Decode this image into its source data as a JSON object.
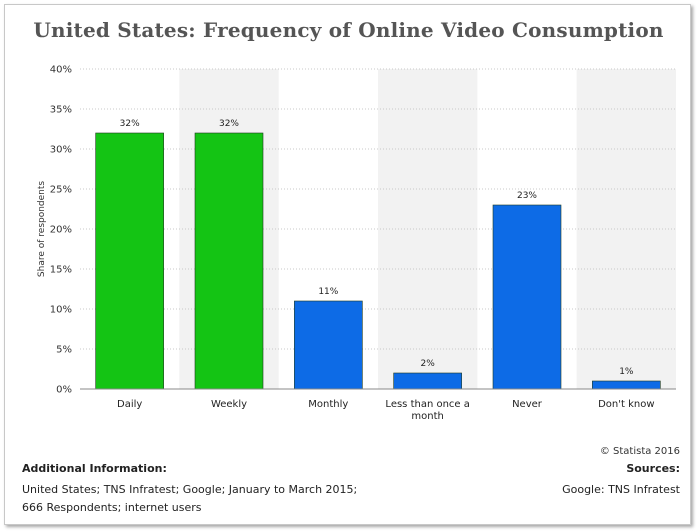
{
  "colors": {
    "green": "#14c414",
    "blue": "#0d6be6",
    "grid": "#c8c8c8",
    "band": "#f2f2f2"
  },
  "chart_data": {
    "type": "bar",
    "title": "United States: Frequency of Online Video Consumption",
    "xlabel": "",
    "ylabel": "Share of respondents",
    "ylim": [
      0,
      40
    ],
    "yticks": [
      "0%",
      "5%",
      "10%",
      "15%",
      "20%",
      "25%",
      "30%",
      "35%",
      "40%"
    ],
    "grid": true,
    "categories": [
      "Daily",
      "Weekly",
      "Monthly",
      "Less than once a month",
      "Never",
      "Don't know"
    ],
    "tick_labels": [
      [
        "Daily"
      ],
      [
        "Weekly"
      ],
      [
        "Monthly"
      ],
      [
        "Less than once a",
        "month"
      ],
      [
        "Never"
      ],
      [
        "Don't know"
      ]
    ],
    "values": [
      32,
      32,
      11,
      2,
      23,
      1
    ],
    "data_labels": [
      "32%",
      "32%",
      "11%",
      "2%",
      "23%",
      "1%"
    ],
    "bar_colors": [
      "#14c414",
      "#14c414",
      "#0d6be6",
      "#0d6be6",
      "#0d6be6",
      "#0d6be6"
    ]
  },
  "footer": {
    "copyright": "© Statista 2016",
    "info_title": "Additional Information:",
    "info_lines": [
      "United States; TNS Infratest; Google; January to March 2015;",
      "666 Respondents; internet users"
    ],
    "sources_title": "Sources:",
    "sources_text": "Google: TNS Infratest"
  }
}
